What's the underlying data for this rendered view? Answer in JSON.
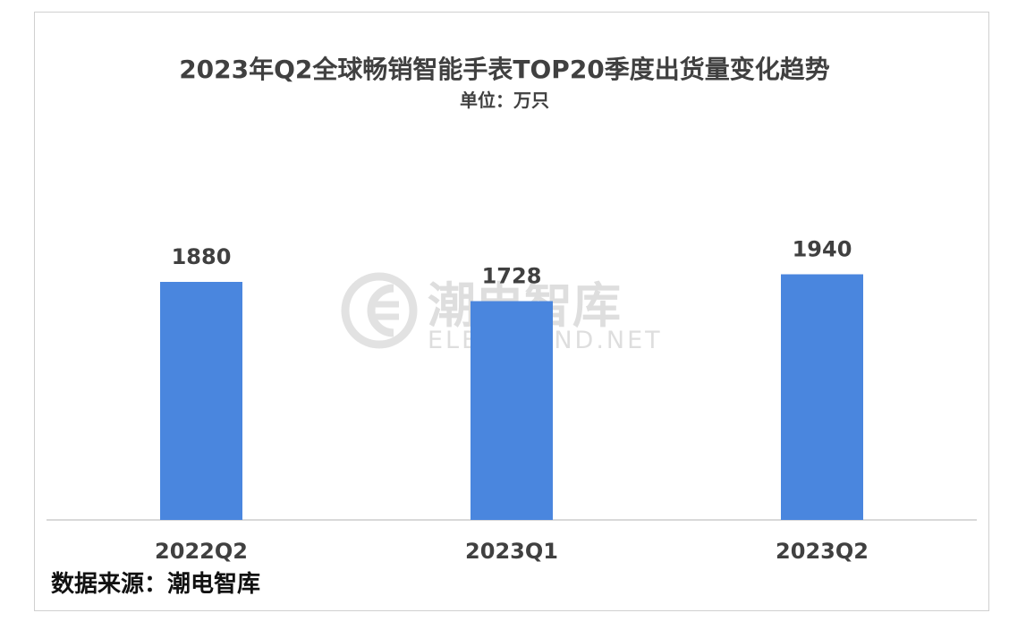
{
  "title": "2023年Q2全球畅销智能手表TOP20季度出货量变化趋势",
  "subtitle": "单位：万只",
  "source": "数据来源：潮电智库",
  "watermark": {
    "brand_cn": "潮电智库",
    "brand_en": "ELECTREND.NET"
  },
  "colors": {
    "bar": "#4a86de",
    "axis": "#d9d9d9",
    "text": "#404040"
  },
  "chart_data": {
    "type": "bar",
    "title": "2023年Q2全球畅销智能手表TOP20季度出货量变化趋势",
    "subtitle": "单位：万只",
    "categories": [
      "2022Q2",
      "2023Q1",
      "2023Q2"
    ],
    "values": [
      1880,
      1728,
      1940
    ],
    "data_labels": [
      "1880",
      "1728",
      "1940"
    ],
    "xlabel": "",
    "ylabel": "",
    "ylim": [
      0,
      2000
    ],
    "grid": false,
    "legend": "none"
  }
}
